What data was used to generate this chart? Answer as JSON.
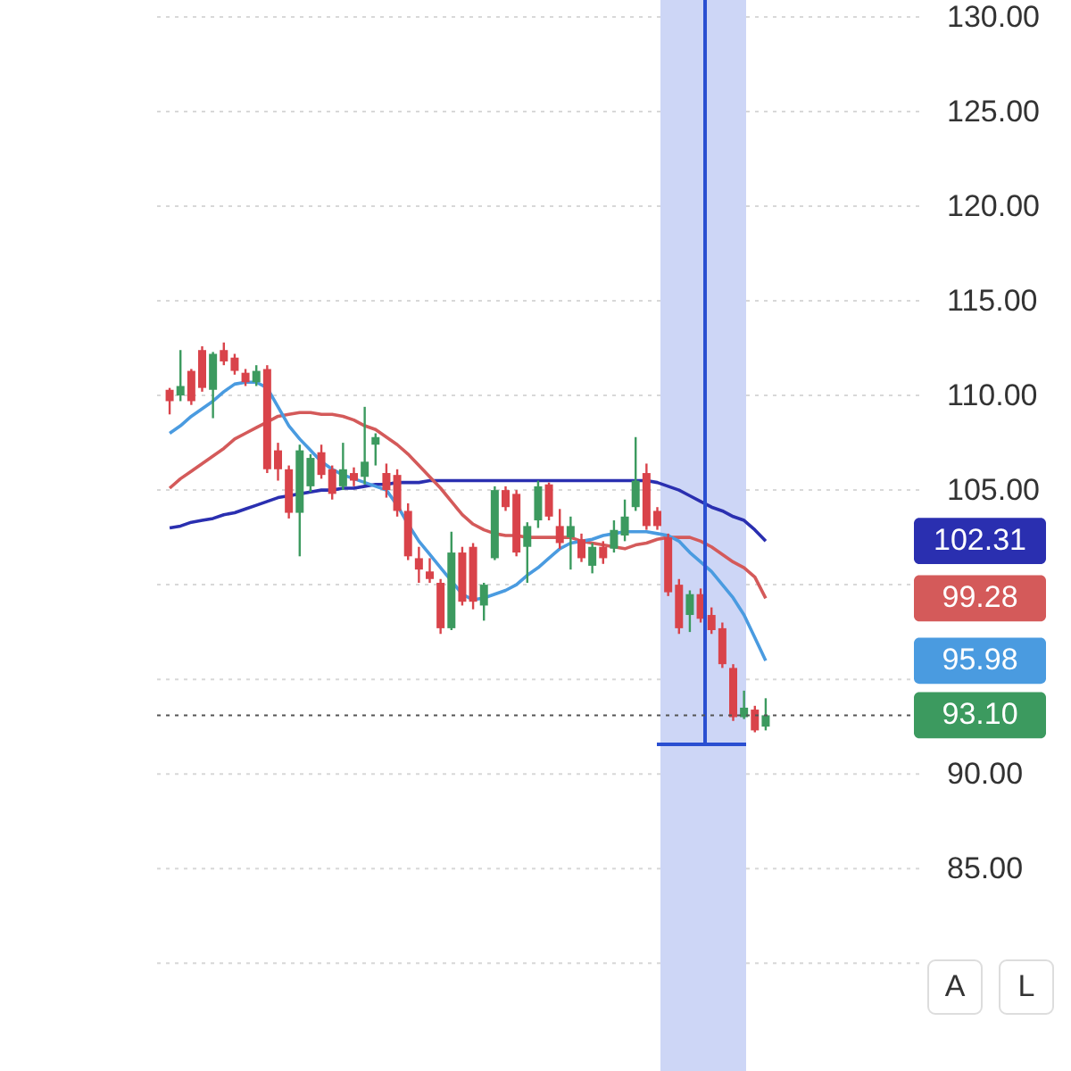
{
  "chart_data": {
    "type": "candlestick",
    "categories": [
      null,
      null,
      null,
      null,
      null,
      null,
      null,
      null,
      null,
      null,
      null,
      null,
      null,
      null,
      null,
      null,
      null,
      null,
      null,
      null,
      null,
      null,
      null,
      null,
      null,
      null,
      null,
      null,
      null,
      null,
      null,
      null,
      null,
      null,
      null,
      null,
      null,
      null,
      null,
      null,
      null,
      null,
      null,
      null,
      null,
      null,
      null,
      null,
      null,
      null,
      null,
      null,
      null,
      null,
      null,
      null
    ],
    "ohlc": [
      [
        110.3,
        110.4,
        109.0,
        109.7
      ],
      [
        110.0,
        112.4,
        109.7,
        110.5
      ],
      [
        111.3,
        111.4,
        109.5,
        109.7
      ],
      [
        112.4,
        112.6,
        110.2,
        110.4
      ],
      [
        110.3,
        112.3,
        108.8,
        112.2
      ],
      [
        112.4,
        112.8,
        111.6,
        111.8
      ],
      [
        112.0,
        112.2,
        111.1,
        111.3
      ],
      [
        111.2,
        111.4,
        110.5,
        110.7
      ],
      [
        110.7,
        111.6,
        110.5,
        111.3
      ],
      [
        111.4,
        111.6,
        105.9,
        106.1
      ],
      [
        107.1,
        107.5,
        105.5,
        106.1
      ],
      [
        106.1,
        106.3,
        103.5,
        103.8
      ],
      [
        103.8,
        107.4,
        101.5,
        107.1
      ],
      [
        105.2,
        106.9,
        104.9,
        106.7
      ],
      [
        107.0,
        107.4,
        105.6,
        105.8
      ],
      [
        106.1,
        106.3,
        104.5,
        104.8
      ],
      [
        105.2,
        107.5,
        105.0,
        106.1
      ],
      [
        105.9,
        106.2,
        105.2,
        105.5
      ],
      [
        105.7,
        109.4,
        105.3,
        106.5
      ],
      [
        107.4,
        108.0,
        106.3,
        107.8
      ],
      [
        105.9,
        106.4,
        104.6,
        105.0
      ],
      [
        105.8,
        106.1,
        103.6,
        103.9
      ],
      [
        103.9,
        104.3,
        101.3,
        101.5
      ],
      [
        101.4,
        102.0,
        100.1,
        100.8
      ],
      [
        100.7,
        101.4,
        100.1,
        100.3
      ],
      [
        100.1,
        100.3,
        97.4,
        97.7
      ],
      [
        97.7,
        102.8,
        97.6,
        101.7
      ],
      [
        101.7,
        102.0,
        98.9,
        99.1
      ],
      [
        102.0,
        102.2,
        98.7,
        99.1
      ],
      [
        98.9,
        100.1,
        98.1,
        100.0
      ],
      [
        101.4,
        105.2,
        101.3,
        105.0
      ],
      [
        105.0,
        105.2,
        103.9,
        104.1
      ],
      [
        104.8,
        105.0,
        101.5,
        101.7
      ],
      [
        102.0,
        103.3,
        100.1,
        103.1
      ],
      [
        103.4,
        105.5,
        103.0,
        105.2
      ],
      [
        105.3,
        105.4,
        103.4,
        103.6
      ],
      [
        103.1,
        104.0,
        101.9,
        102.2
      ],
      [
        102.5,
        103.6,
        100.8,
        103.1
      ],
      [
        102.4,
        102.7,
        101.2,
        101.4
      ],
      [
        101.0,
        102.2,
        100.6,
        102.0
      ],
      [
        102.0,
        102.3,
        101.1,
        101.4
      ],
      [
        101.9,
        103.4,
        101.7,
        102.9
      ],
      [
        102.6,
        104.5,
        102.3,
        103.6
      ],
      [
        104.1,
        107.8,
        103.9,
        105.5
      ],
      [
        105.9,
        106.4,
        102.9,
        103.1
      ],
      [
        103.9,
        104.1,
        102.9,
        103.1
      ],
      [
        102.5,
        102.7,
        99.4,
        99.6
      ],
      [
        100.0,
        100.3,
        97.4,
        97.7
      ],
      [
        98.4,
        99.7,
        97.5,
        99.5
      ],
      [
        99.5,
        99.8,
        98.0,
        98.2
      ],
      [
        98.4,
        98.8,
        97.4,
        97.6
      ],
      [
        97.7,
        98.0,
        95.6,
        95.8
      ],
      [
        95.6,
        95.8,
        92.8,
        93.0
      ],
      [
        93.0,
        94.4,
        92.9,
        93.5
      ],
      [
        93.4,
        93.6,
        92.2,
        92.3
      ],
      [
        92.5,
        94.0,
        92.3,
        93.1
      ]
    ],
    "colors": [
      "#d9434a",
      "#3c9a5f",
      "#d9434a",
      "#d9434a",
      "#3c9a5f",
      "#d9434a",
      "#d9434a",
      "#d9434a",
      "#3c9a5f",
      "#d9434a",
      "#d9434a",
      "#d9434a",
      "#3c9a5f",
      "#3c9a5f",
      "#d9434a",
      "#d9434a",
      "#3c9a5f",
      "#d9434a",
      "#3c9a5f",
      "#3c9a5f",
      "#d9434a",
      "#d9434a",
      "#d9434a",
      "#d9434a",
      "#d9434a",
      "#d9434a",
      "#3c9a5f",
      "#d9434a",
      "#d9434a",
      "#3c9a5f",
      "#3c9a5f",
      "#d9434a",
      "#d9434a",
      "#3c9a5f",
      "#3c9a5f",
      "#d9434a",
      "#d9434a",
      "#3c9a5f",
      "#d9434a",
      "#3c9a5f",
      "#d9434a",
      "#3c9a5f",
      "#3c9a5f",
      "#3c9a5f",
      "#d9434a",
      "#d9434a",
      "#d9434a",
      "#d9434a",
      "#3c9a5f",
      "#d9434a",
      "#d9434a",
      "#d9434a",
      "#d9434a",
      "#3c9a5f",
      "#d9434a",
      "#3c9a5f"
    ],
    "series": [
      {
        "type": "line",
        "color": "#2a2fb0",
        "values": [
          103.0,
          103.1,
          103.3,
          103.4,
          103.5,
          103.7,
          103.8,
          104.0,
          104.2,
          104.4,
          104.6,
          104.7,
          104.8,
          104.9,
          105.0,
          105.0,
          105.1,
          105.1,
          105.2,
          105.3,
          105.3,
          105.4,
          105.4,
          105.4,
          105.5,
          105.5,
          105.5,
          105.5,
          105.5,
          105.5,
          105.5,
          105.5,
          105.5,
          105.5,
          105.5,
          105.5,
          105.5,
          105.5,
          105.5,
          105.5,
          105.5,
          105.5,
          105.5,
          105.5,
          105.5,
          105.4,
          105.2,
          105.0,
          104.7,
          104.4,
          104.1,
          103.9,
          103.6,
          103.4,
          102.9,
          102.31
        ]
      },
      {
        "type": "line",
        "color": "#d45a5a",
        "values": [
          105.1,
          105.6,
          106.0,
          106.4,
          106.8,
          107.2,
          107.7,
          108.0,
          108.3,
          108.6,
          108.9,
          109.0,
          109.1,
          109.1,
          109.0,
          109.0,
          108.9,
          108.7,
          108.4,
          108.2,
          107.8,
          107.4,
          106.9,
          106.3,
          105.7,
          105.1,
          104.4,
          103.7,
          103.2,
          102.9,
          102.7,
          102.6,
          102.6,
          102.5,
          102.5,
          102.5,
          102.5,
          102.5,
          102.3,
          102.2,
          102.1,
          102.0,
          101.9,
          102.1,
          102.2,
          102.4,
          102.5,
          102.5,
          102.5,
          102.3,
          102.0,
          101.6,
          101.2,
          100.9,
          100.4,
          99.28
        ]
      },
      {
        "type": "line",
        "color": "#4a9be0",
        "values": [
          108.0,
          108.4,
          108.9,
          109.3,
          109.7,
          110.2,
          110.6,
          110.7,
          110.7,
          110.4,
          109.4,
          108.4,
          107.7,
          107.1,
          106.5,
          106.1,
          105.8,
          105.6,
          105.4,
          105.2,
          105.0,
          104.2,
          103.2,
          102.3,
          101.6,
          100.9,
          100.2,
          99.5,
          99.2,
          99.3,
          99.5,
          99.7,
          100.0,
          100.5,
          100.9,
          101.4,
          101.9,
          102.2,
          102.3,
          102.4,
          102.6,
          102.7,
          102.8,
          102.8,
          102.8,
          102.7,
          102.6,
          102.3,
          101.7,
          101.2,
          100.7,
          100.0,
          99.3,
          98.4,
          97.2,
          95.98
        ]
      }
    ],
    "annotations": [
      "102.31",
      "99.28",
      "95.98",
      "A",
      "L"
    ],
    "ref_lines": [
      {
        "axis": "y",
        "value": 93.1,
        "label": "93.10",
        "color": "#555555",
        "line_style": "dotted"
      }
    ],
    "ylim": [
      74.3,
      130.9
    ],
    "yticks": [
      {
        "value": 80,
        "label": null
      },
      {
        "value": 85,
        "label": "85.00"
      },
      {
        "value": 90,
        "label": "90.00"
      },
      {
        "value": 95,
        "label": null
      },
      {
        "value": 100,
        "label": null
      },
      {
        "value": 105,
        "label": "105.00"
      },
      {
        "value": 110,
        "label": "110.00"
      },
      {
        "value": 115,
        "label": "115.00"
      },
      {
        "value": 120,
        "label": "120.00"
      },
      {
        "value": 125,
        "label": "125.00"
      },
      {
        "value": 130,
        "label": "130.00"
      }
    ],
    "tick_labels": "y",
    "grid": "y"
  }
}
